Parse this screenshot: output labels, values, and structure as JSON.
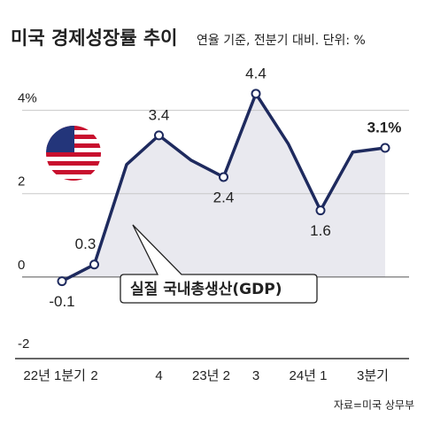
{
  "chart_data": {
    "type": "line",
    "title": "미국 경제성장률 추이",
    "subtitle": "연율 기준, 전분기 대비. 단위: %",
    "annotation": "실질 국내총생산(GDP)",
    "source": "자료=미국 상무부",
    "categories": [
      "22년 1분기",
      "2",
      null,
      "4",
      null,
      "23년 2",
      "3",
      null,
      "24년 1",
      null,
      "3분기"
    ],
    "values": [
      -0.1,
      0.3,
      2.7,
      3.4,
      2.8,
      2.4,
      4.4,
      3.2,
      1.6,
      3.0,
      3.1
    ],
    "value_labels": [
      "-0.1",
      "0.3",
      null,
      "3.4",
      null,
      "2.4",
      "4.4",
      null,
      "1.6",
      null,
      "3.1%"
    ],
    "color": "#1e2a5e",
    "area_color": "#e9e9ef",
    "ylim": [
      -2,
      4.8
    ],
    "yticks": [
      -2,
      0,
      2,
      {
        "value": 4,
        "label": "4%"
      }
    ],
    "grid": true
  }
}
